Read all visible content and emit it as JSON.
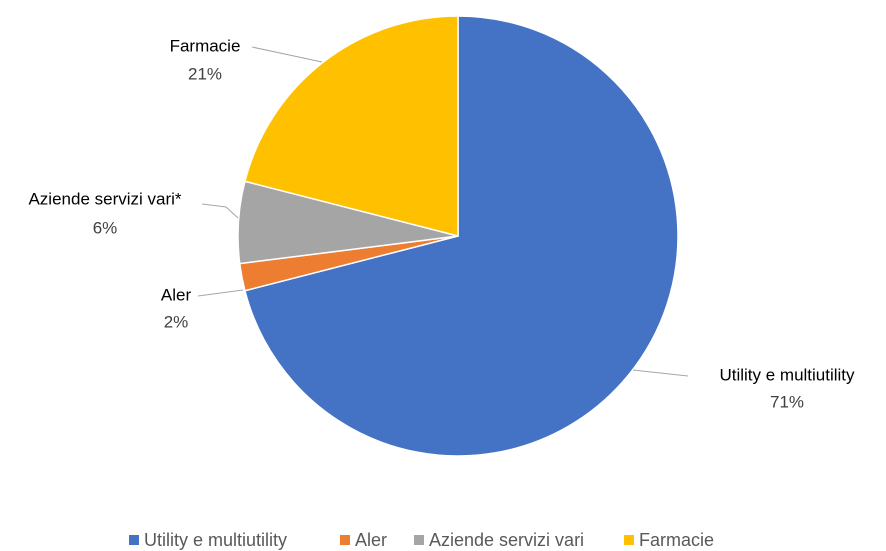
{
  "chart_data": {
    "type": "pie",
    "categories": [
      "Utility e multiutility",
      "Aler",
      "Aziende servizi vari",
      "Farmacie"
    ],
    "label_names": [
      "Utility e multiutility",
      "Aler",
      "Aziende servizi vari*",
      "Farmacie"
    ],
    "values": [
      71,
      2,
      6,
      21
    ],
    "value_labels": [
      "71%",
      "2%",
      "6%",
      "21%"
    ],
    "colors": [
      "#4472c4",
      "#ed7d31",
      "#a5a5a5",
      "#ffc000"
    ],
    "legend": "bottom"
  }
}
